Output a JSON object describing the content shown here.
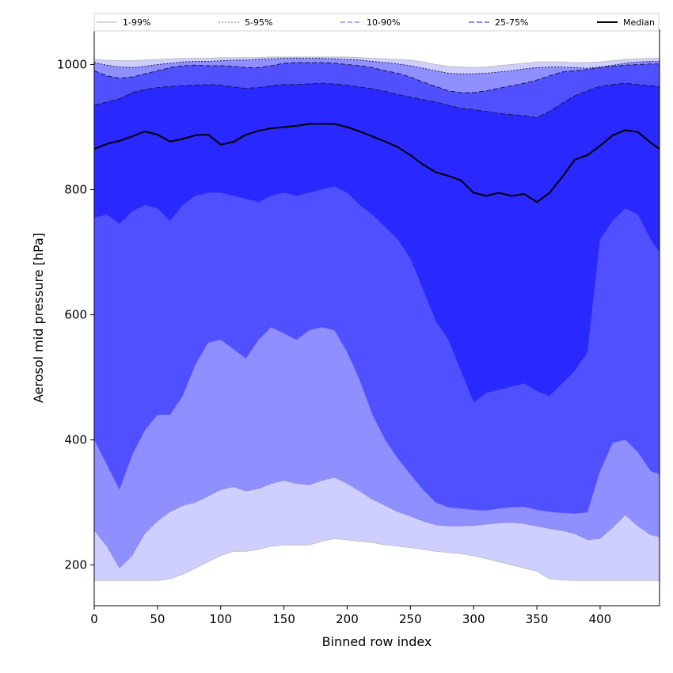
{
  "chart_data": {
    "type": "area",
    "title": "",
    "xlabel": "Binned row index",
    "ylabel": "Aerosol mid pressure [hPa]",
    "xlim": [
      0,
      447
    ],
    "ylim": [
      135,
      1055
    ],
    "x_ticks": [
      0,
      50,
      100,
      150,
      200,
      250,
      300,
      350,
      400
    ],
    "y_ticks": [
      200,
      400,
      600,
      800,
      1000
    ],
    "grid": false,
    "legend_position": "top",
    "x": [
      0,
      10,
      20,
      30,
      40,
      50,
      60,
      70,
      80,
      90,
      100,
      110,
      120,
      130,
      140,
      150,
      160,
      170,
      180,
      190,
      200,
      210,
      220,
      230,
      240,
      250,
      260,
      270,
      280,
      290,
      300,
      310,
      320,
      330,
      340,
      350,
      360,
      370,
      380,
      390,
      400,
      410,
      420,
      430,
      440,
      447
    ],
    "series": [
      {
        "name": "1-99%",
        "color": "#cfcfff",
        "line_color": "#bdbdbd",
        "dash": "none",
        "lower": [
          175,
          175,
          175,
          175,
          175,
          175,
          178,
          185,
          195,
          205,
          215,
          222,
          222,
          225,
          230,
          232,
          232,
          232,
          238,
          242,
          240,
          238,
          236,
          232,
          230,
          228,
          225,
          222,
          220,
          218,
          215,
          210,
          205,
          200,
          195,
          190,
          178,
          176,
          175,
          175,
          175,
          175,
          175,
          175,
          175,
          175
        ],
        "upper": [
          1008,
          1007,
          1006,
          1006,
          1007,
          1008,
          1009,
          1010,
          1010,
          1010,
          1011,
          1011,
          1011,
          1011,
          1012,
          1012,
          1012,
          1012,
          1012,
          1012,
          1012,
          1011,
          1010,
          1009,
          1008,
          1007,
          1004,
          1000,
          997,
          996,
          995,
          996,
          998,
          1000,
          1002,
          1004,
          1004,
          1004,
          1003,
          1003,
          1004,
          1006,
          1008,
          1009,
          1010,
          1010
        ]
      },
      {
        "name": "5-95%",
        "color": "#8f8fff",
        "line_color": "#8a8aa8",
        "dash": "2,2",
        "lower": [
          255,
          230,
          195,
          215,
          250,
          270,
          285,
          295,
          300,
          310,
          320,
          325,
          318,
          322,
          330,
          335,
          330,
          328,
          335,
          340,
          330,
          318,
          305,
          295,
          285,
          278,
          270,
          264,
          262,
          262,
          263,
          265,
          267,
          268,
          266,
          262,
          258,
          255,
          250,
          240,
          242,
          260,
          280,
          262,
          248,
          245
        ],
        "upper": [
          1003,
          999,
          996,
          995,
          997,
          1000,
          1002,
          1004,
          1005,
          1005,
          1006,
          1007,
          1007,
          1008,
          1009,
          1010,
          1010,
          1010,
          1010,
          1009,
          1008,
          1007,
          1005,
          1003,
          1001,
          998,
          994,
          990,
          986,
          985,
          985,
          986,
          988,
          990,
          993,
          995,
          996,
          996,
          995,
          994,
          996,
          999,
          1002,
          1004,
          1005,
          1005
        ]
      },
      {
        "name": "10-90%",
        "color": "#5050ff",
        "line_color": "#7a7aff",
        "dash": "6,3",
        "lower": [
          400,
          360,
          320,
          375,
          415,
          440,
          440,
          470,
          520,
          555,
          560,
          545,
          530,
          560,
          580,
          570,
          560,
          575,
          580,
          575,
          540,
          495,
          440,
          400,
          370,
          345,
          320,
          300,
          292,
          290,
          288,
          287,
          290,
          292,
          293,
          288,
          285,
          283,
          282,
          284,
          350,
          395,
          400,
          380,
          350,
          345
        ],
        "upper": [
          990,
          982,
          978,
          980,
          985,
          990,
          995,
          998,
          999,
          998,
          998,
          997,
          995,
          995,
          998,
          1002,
          1003,
          1003,
          1003,
          1002,
          1000,
          998,
          995,
          990,
          986,
          980,
          972,
          965,
          958,
          955,
          955,
          958,
          962,
          966,
          970,
          975,
          982,
          988,
          990,
          992,
          995,
          997,
          999,
          1000,
          1001,
          1001
        ]
      },
      {
        "name": "25-75%",
        "color": "#2828ff",
        "line_color": "#4a4adc",
        "dash": "7,3",
        "lower": [
          755,
          760,
          745,
          765,
          775,
          770,
          750,
          775,
          790,
          795,
          795,
          790,
          785,
          780,
          790,
          795,
          790,
          795,
          800,
          805,
          795,
          775,
          760,
          740,
          720,
          690,
          640,
          590,
          560,
          510,
          460,
          475,
          480,
          485,
          490,
          478,
          470,
          490,
          510,
          540,
          720,
          750,
          770,
          760,
          720,
          700
        ],
        "upper": [
          935,
          940,
          945,
          955,
          960,
          963,
          965,
          966,
          967,
          968,
          967,
          964,
          962,
          963,
          966,
          968,
          968,
          969,
          970,
          969,
          967,
          964,
          961,
          957,
          952,
          948,
          944,
          940,
          935,
          930,
          928,
          925,
          922,
          920,
          918,
          915,
          925,
          938,
          950,
          958,
          965,
          968,
          970,
          968,
          966,
          965
        ]
      },
      {
        "name": "Median",
        "color": "#000000",
        "line_color": "#000000",
        "dash": "none",
        "values": [
          865,
          873,
          878,
          885,
          893,
          888,
          877,
          881,
          887,
          888,
          872,
          876,
          888,
          894,
          898,
          900,
          902,
          905,
          905,
          905,
          900,
          893,
          885,
          877,
          868,
          855,
          840,
          828,
          822,
          815,
          795,
          790,
          795,
          790,
          793,
          780,
          795,
          820,
          848,
          855,
          870,
          887,
          895,
          892,
          875,
          865
        ]
      }
    ]
  }
}
